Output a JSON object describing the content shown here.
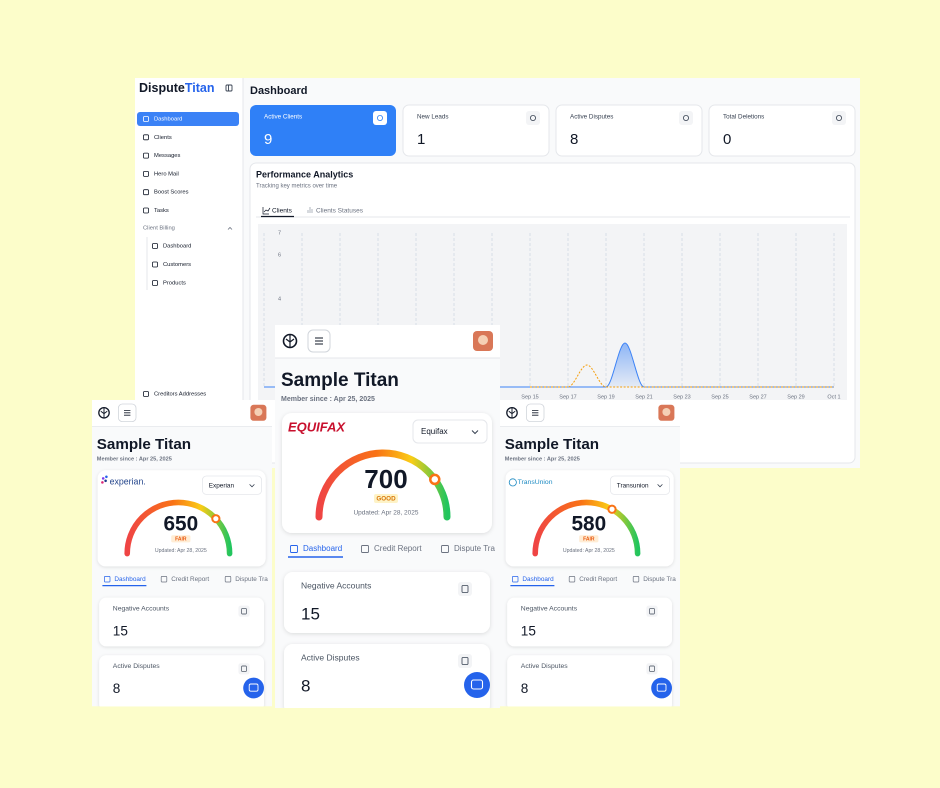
{
  "dashboard": {
    "logo": [
      "Dispute",
      "Titan"
    ],
    "sidebar": {
      "items": [
        "Dashboard",
        "Clients",
        "Messages",
        "Hero Mail",
        "Boost Scores",
        "Tasks"
      ],
      "group": "Client Billing",
      "group_items": [
        "Dashboard",
        "Customers",
        "Products"
      ],
      "footer": "Creditors Addresses"
    },
    "header": "Dashboard",
    "stats": [
      {
        "label": "Active Clients",
        "value": 9
      },
      {
        "label": "New Leads",
        "value": 1
      },
      {
        "label": "Active Disputes",
        "value": 8
      },
      {
        "label": "Total Deletions",
        "value": 0
      }
    ],
    "analytics": {
      "title": "Performance Analytics",
      "subtitle": "Tracking key metrics over time",
      "tabs": [
        "Clients",
        "Clients Statuses"
      ],
      "chart": {
        "type": "line",
        "categories": [
          "Sep 15",
          null,
          "Sep 17",
          null,
          "Sep 19",
          null,
          "Sep 21",
          null,
          "Sep 23",
          null,
          "Sep 25",
          null,
          "Sep 27",
          null,
          "Sep 29",
          null,
          "Oct 1"
        ],
        "ylim": [
          0,
          7
        ],
        "yticks": [
          4,
          6,
          7
        ],
        "series": [
          {
            "color": "#3b82f6",
            "values": [
              0,
              0,
              0,
              0,
              0,
              2,
              0,
              0,
              0,
              0,
              0,
              0,
              0,
              0,
              0,
              0,
              0
            ]
          },
          {
            "color": "#f59e0b",
            "values": [
              0,
              0,
              0,
              1,
              0,
              0,
              0,
              0,
              0,
              0,
              0,
              0,
              0,
              0,
              0,
              0,
              0
            ]
          }
        ]
      }
    }
  },
  "phones": [
    {
      "title": "Sample Titan",
      "member_since": "Member since : Apr 25, 2025",
      "bureau": "experian.",
      "selector": "Experian",
      "score": 650,
      "rating": "FAIR",
      "updated": "Updated: Apr 28, 2025",
      "tabs": [
        "Dashboard",
        "Credit Report",
        "Dispute Tra"
      ],
      "cards": [
        {
          "label": "Negative Accounts",
          "value": 15
        },
        {
          "label": "Active Disputes",
          "value": 8
        }
      ]
    },
    {
      "title": "Sample Titan",
      "member_since": "Member since : Apr 25, 2025",
      "bureau": "EQUIFAX",
      "selector": "Equifax",
      "score": 700,
      "rating": "GOOD",
      "updated": "Updated: Apr 28, 2025",
      "tabs": [
        "Dashboard",
        "Credit Report",
        "Dispute Tra"
      ],
      "cards": [
        {
          "label": "Negative Accounts",
          "value": 15
        },
        {
          "label": "Active Disputes",
          "value": 8
        }
      ]
    },
    {
      "title": "Sample Titan",
      "member_since": "Member since : Apr 25, 2025",
      "bureau": "TransUnion",
      "selector": "Transunion",
      "score": 580,
      "rating": "FAIR",
      "updated": "Updated: Apr 28, 2025",
      "tabs": [
        "Dashboard",
        "Credit Report",
        "Dispute Tra"
      ],
      "cards": [
        {
          "label": "Negative Accounts",
          "value": 15
        },
        {
          "label": "Active Disputes",
          "value": 8
        }
      ]
    }
  ]
}
